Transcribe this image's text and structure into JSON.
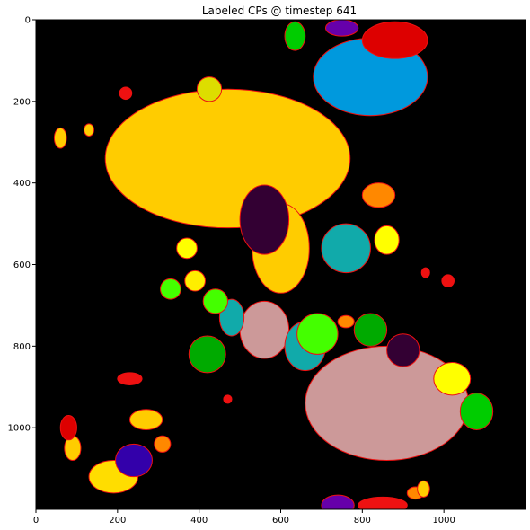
{
  "chart_data": {
    "type": "heatmap",
    "title": "Labeled CPs @ timestep 641",
    "xlabel": "",
    "ylabel": "",
    "xlim": [
      0,
      1200
    ],
    "ylim": [
      1200,
      0
    ],
    "x_ticks": [
      0,
      200,
      400,
      600,
      800,
      1000
    ],
    "y_ticks": [
      0,
      200,
      400,
      600,
      800,
      1000
    ],
    "grid": false,
    "background_color": "#000000",
    "regions": [
      {
        "color": "#ffcc00",
        "cx": 470,
        "cy": 340,
        "rx": 300,
        "ry": 170
      },
      {
        "color": "#ffcc00",
        "cx": 600,
        "cy": 560,
        "rx": 70,
        "ry": 110
      },
      {
        "color": "#cc9999",
        "cx": 860,
        "cy": 940,
        "rx": 200,
        "ry": 140
      },
      {
        "color": "#cc9999",
        "cx": 560,
        "cy": 760,
        "rx": 60,
        "ry": 70
      },
      {
        "color": "#0099dd",
        "cx": 820,
        "cy": 140,
        "rx": 140,
        "ry": 95
      },
      {
        "color": "#330033",
        "cx": 560,
        "cy": 490,
        "rx": 60,
        "ry": 85
      },
      {
        "color": "#330033",
        "cx": 900,
        "cy": 810,
        "rx": 40,
        "ry": 40
      },
      {
        "color": "#11aaaa",
        "cx": 760,
        "cy": 560,
        "rx": 60,
        "ry": 60
      },
      {
        "color": "#11aaaa",
        "cx": 660,
        "cy": 800,
        "rx": 50,
        "ry": 60
      },
      {
        "color": "#11aaaa",
        "cx": 480,
        "cy": 730,
        "rx": 30,
        "ry": 45
      },
      {
        "color": "#44ff00",
        "cx": 690,
        "cy": 770,
        "rx": 50,
        "ry": 50
      },
      {
        "color": "#44ff00",
        "cx": 440,
        "cy": 690,
        "rx": 30,
        "ry": 30
      },
      {
        "color": "#44ff00",
        "cx": 330,
        "cy": 660,
        "rx": 25,
        "ry": 25
      },
      {
        "color": "#00aa00",
        "cx": 420,
        "cy": 820,
        "rx": 45,
        "ry": 45
      },
      {
        "color": "#00aa00",
        "cx": 820,
        "cy": 760,
        "rx": 40,
        "ry": 40
      },
      {
        "color": "#00cc00",
        "cx": 1080,
        "cy": 960,
        "rx": 40,
        "ry": 45
      },
      {
        "color": "#00cc00",
        "cx": 635,
        "cy": 40,
        "rx": 25,
        "ry": 35
      },
      {
        "color": "#ffff00",
        "cx": 1020,
        "cy": 880,
        "rx": 45,
        "ry": 40
      },
      {
        "color": "#ffff00",
        "cx": 860,
        "cy": 540,
        "rx": 30,
        "ry": 35
      },
      {
        "color": "#ffff00",
        "cx": 370,
        "cy": 560,
        "rx": 25,
        "ry": 25
      },
      {
        "color": "#ffdd00",
        "cx": 190,
        "cy": 1120,
        "rx": 60,
        "ry": 40
      },
      {
        "color": "#ffcc00",
        "cx": 90,
        "cy": 1050,
        "rx": 20,
        "ry": 30
      },
      {
        "color": "#ffcc00",
        "cx": 270,
        "cy": 980,
        "rx": 40,
        "ry": 25
      },
      {
        "color": "#3300aa",
        "cx": 240,
        "cy": 1080,
        "rx": 45,
        "ry": 40
      },
      {
        "color": "#6600aa",
        "cx": 750,
        "cy": 20,
        "rx": 40,
        "ry": 20
      },
      {
        "color": "#6600aa",
        "cx": 740,
        "cy": 1190,
        "rx": 40,
        "ry": 25
      },
      {
        "color": "#dd0000",
        "cx": 880,
        "cy": 50,
        "rx": 80,
        "ry": 45
      },
      {
        "color": "#dd0000",
        "cx": 80,
        "cy": 1000,
        "rx": 20,
        "ry": 30
      },
      {
        "color": "#ee1111",
        "cx": 230,
        "cy": 880,
        "rx": 30,
        "ry": 15
      },
      {
        "color": "#ee1111",
        "cx": 850,
        "cy": 1190,
        "rx": 60,
        "ry": 20
      },
      {
        "color": "#ff8800",
        "cx": 840,
        "cy": 430,
        "rx": 40,
        "ry": 30
      },
      {
        "color": "#ff8800",
        "cx": 760,
        "cy": 740,
        "rx": 20,
        "ry": 15
      },
      {
        "color": "#ff8800",
        "cx": 310,
        "cy": 1040,
        "rx": 20,
        "ry": 20
      },
      {
        "color": "#dddd00",
        "cx": 425,
        "cy": 170,
        "rx": 30,
        "ry": 30
      },
      {
        "color": "#ffcc00",
        "cx": 60,
        "cy": 290,
        "rx": 15,
        "ry": 25
      },
      {
        "color": "#ffcc00",
        "cx": 130,
        "cy": 270,
        "rx": 12,
        "ry": 15
      },
      {
        "color": "#ffee00",
        "cx": 390,
        "cy": 640,
        "rx": 25,
        "ry": 25
      },
      {
        "color": "#ee1111",
        "cx": 220,
        "cy": 180,
        "rx": 15,
        "ry": 15
      },
      {
        "color": "#ee1111",
        "cx": 470,
        "cy": 930,
        "rx": 10,
        "ry": 10
      },
      {
        "color": "#ee1111",
        "cx": 1010,
        "cy": 640,
        "rx": 15,
        "ry": 15
      },
      {
        "color": "#ee1111",
        "cx": 955,
        "cy": 620,
        "rx": 10,
        "ry": 12
      },
      {
        "color": "#ff8800",
        "cx": 930,
        "cy": 1160,
        "rx": 20,
        "ry": 15
      },
      {
        "color": "#ffcc00",
        "cx": 950,
        "cy": 1150,
        "rx": 15,
        "ry": 20
      }
    ]
  }
}
